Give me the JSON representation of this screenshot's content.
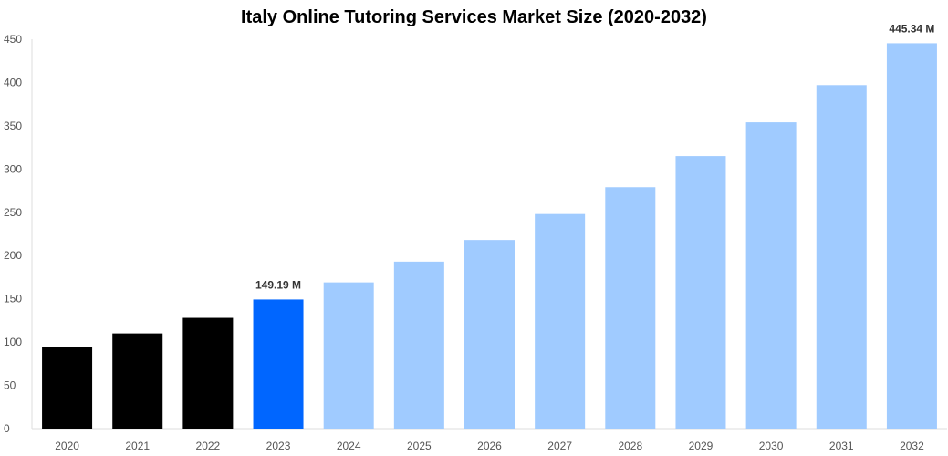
{
  "chart_data": {
    "type": "bar",
    "title": "Italy Online Tutoring Services Market Size (2020-2032)",
    "xlabel": "",
    "ylabel": "",
    "ylim": [
      0,
      450
    ],
    "yticks": [
      0,
      50,
      100,
      150,
      200,
      250,
      300,
      350,
      400,
      450
    ],
    "grid": false,
    "categories": [
      "2020",
      "2021",
      "2022",
      "2023",
      "2024",
      "2025",
      "2026",
      "2027",
      "2028",
      "2029",
      "2030",
      "2031",
      "2032"
    ],
    "values": [
      94,
      110,
      128,
      149.19,
      169,
      193,
      218,
      248,
      279,
      315,
      354,
      397,
      445.34
    ],
    "colors": [
      "#000000",
      "#000000",
      "#000000",
      "#0066ff",
      "#a0cbff",
      "#a0cbff",
      "#a0cbff",
      "#a0cbff",
      "#a0cbff",
      "#a0cbff",
      "#a0cbff",
      "#a0cbff",
      "#a0cbff"
    ],
    "data_labels": {
      "3": "149.19 M",
      "12": "445.34 M"
    }
  }
}
